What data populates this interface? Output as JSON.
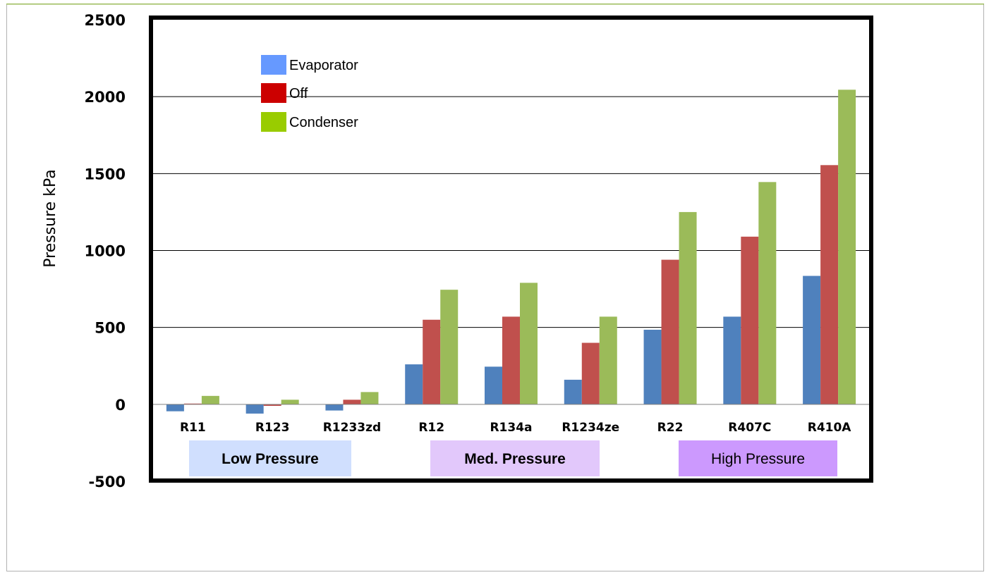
{
  "chart_data": {
    "type": "bar",
    "ylabel": "Pressure kPa",
    "ylim": [
      -500,
      2500
    ],
    "yticks": [
      "2500",
      "2000",
      "1500",
      "1000",
      "500",
      "0",
      "-500"
    ],
    "categories": [
      "R11",
      "R123",
      "R1233zd",
      "R12",
      "R134a",
      "R1234ze",
      "R22",
      "R407C",
      "R410A"
    ],
    "series": [
      {
        "name": "Evaporator",
        "color": "#4f81bd",
        "legend_color": "#6699ff",
        "values": [
          -45,
          -60,
          -40,
          260,
          245,
          160,
          485,
          570,
          835
        ]
      },
      {
        "name": "Off",
        "color": "#c0504d",
        "legend_color": "#cc0000",
        "values": [
          5,
          -10,
          30,
          550,
          570,
          400,
          940,
          1090,
          1555
        ]
      },
      {
        "name": "Condenser",
        "color": "#9bbb59",
        "legend_color": "#99cc00",
        "values": [
          55,
          30,
          80,
          745,
          790,
          570,
          1250,
          1445,
          2045
        ]
      }
    ],
    "grid": true,
    "legend": "top-left",
    "groups": [
      {
        "label": "Low Pressure",
        "color": "#d0dffe",
        "bold": true
      },
      {
        "label": "Med. Pressure",
        "color": "#e2c8fb",
        "bold": true
      },
      {
        "label": "High Pressure",
        "color": "#cc99fe",
        "bold": false
      }
    ]
  }
}
